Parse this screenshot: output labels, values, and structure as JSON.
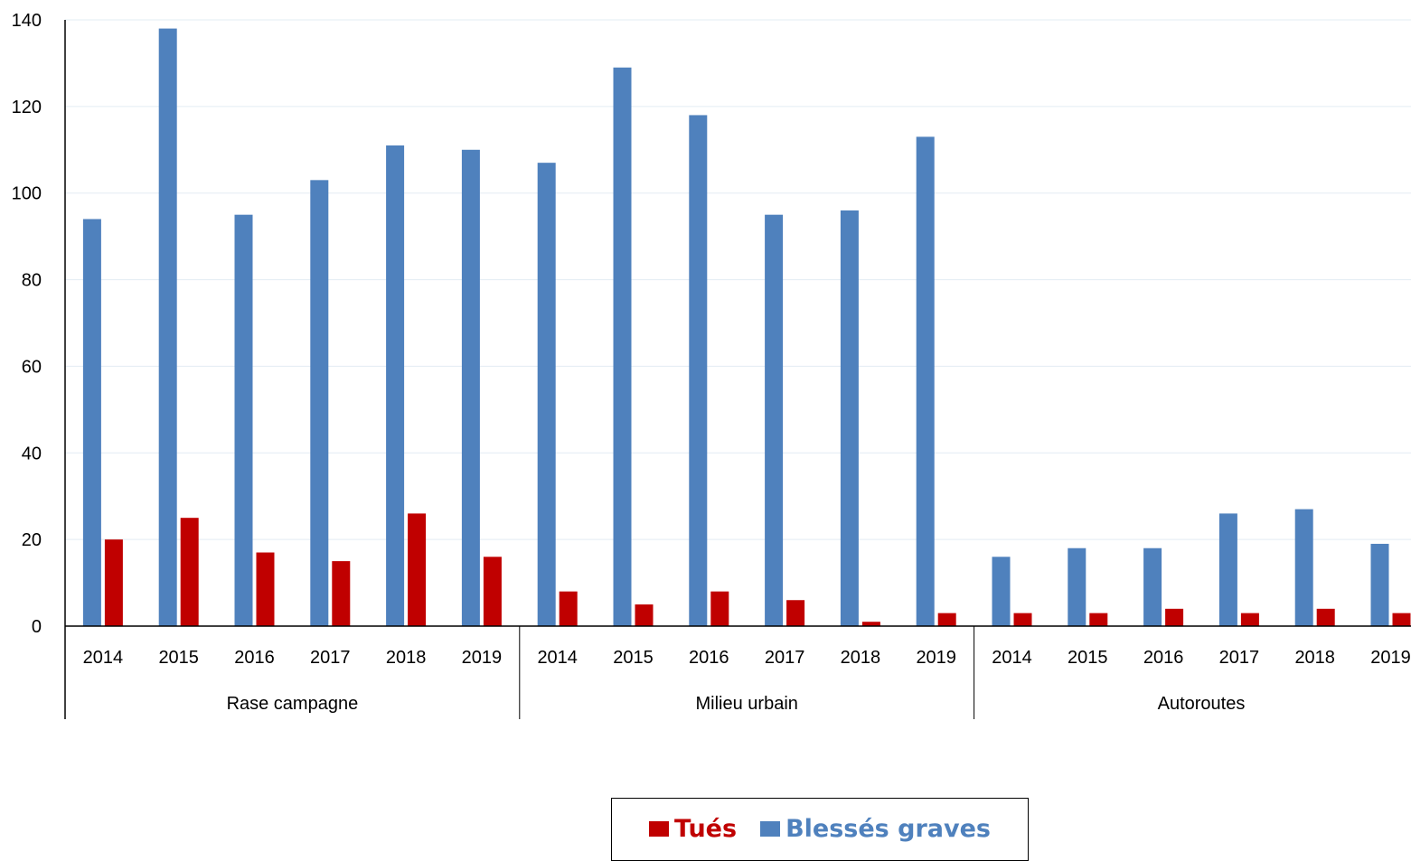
{
  "chart_data": {
    "type": "bar",
    "groups": [
      {
        "label": "Rase campagne",
        "categories": [
          "2014",
          "2015",
          "2016",
          "2017",
          "2018",
          "2019"
        ]
      },
      {
        "label": "Milieu urbain",
        "categories": [
          "2014",
          "2015",
          "2016",
          "2017",
          "2018",
          "2019"
        ]
      },
      {
        "label": "Autoroutes",
        "categories": [
          "2014",
          "2015",
          "2016",
          "2017",
          "2018",
          "2019"
        ]
      }
    ],
    "series": [
      {
        "name": "Tués",
        "color": "#C00000",
        "values": [
          20,
          25,
          17,
          15,
          26,
          16,
          8,
          5,
          8,
          6,
          1,
          3,
          3,
          3,
          4,
          3,
          4,
          3
        ]
      },
      {
        "name": "Blessés graves",
        "color": "#4F81BD",
        "values": [
          94,
          138,
          95,
          103,
          111,
          110,
          107,
          129,
          118,
          95,
          96,
          113,
          16,
          18,
          18,
          26,
          27,
          19
        ]
      }
    ],
    "ylim": [
      0,
      140
    ],
    "yticks": [
      0,
      20,
      40,
      60,
      80,
      100,
      120,
      140
    ],
    "grid": true,
    "legend_position": "bottom"
  }
}
